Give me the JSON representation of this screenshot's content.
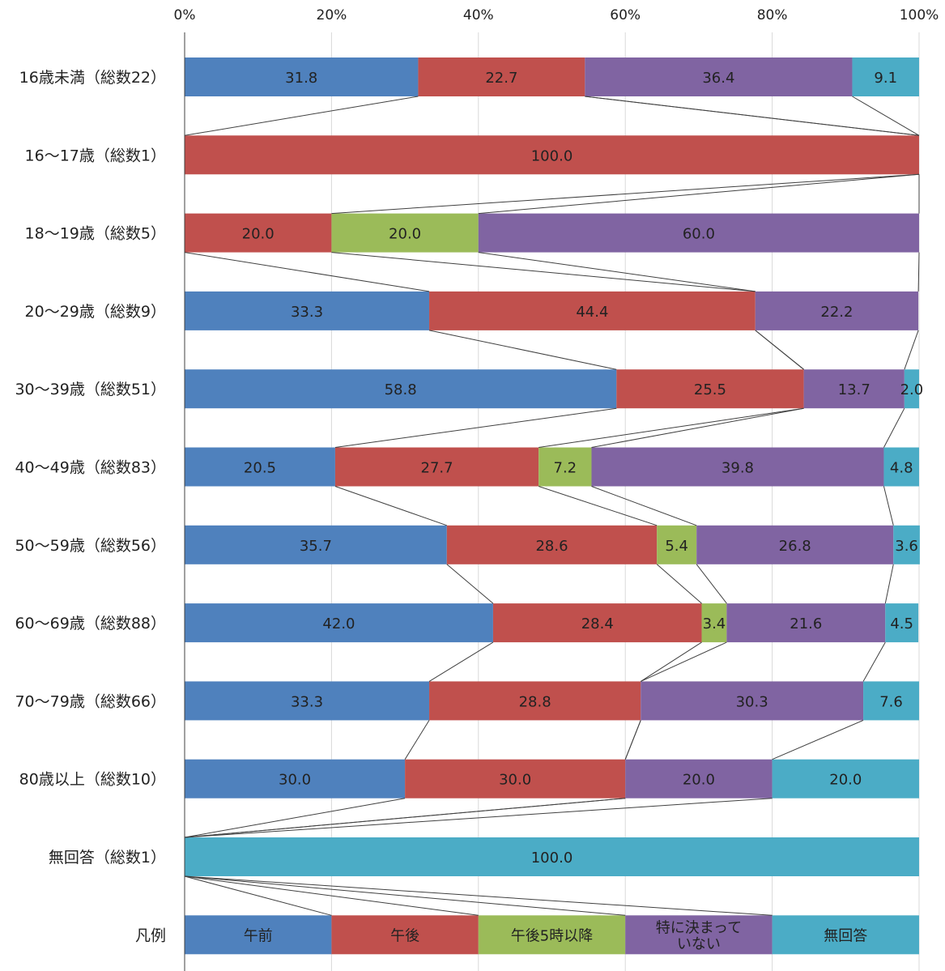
{
  "chart_data": {
    "type": "bar",
    "orientation": "horizontal-stacked-100",
    "xlim": [
      0,
      100
    ],
    "x_ticks": [
      "0%",
      "20%",
      "40%",
      "60%",
      "80%",
      "100%"
    ],
    "grid": true,
    "legend": {
      "label": "凡例",
      "entries": [
        {
          "label": "午前",
          "value": 20
        },
        {
          "label": "午後",
          "value": 20
        },
        {
          "label": "午後5時以降",
          "value": 20
        },
        {
          "label": "特に決まって\nいない",
          "value": 20
        },
        {
          "label": "無回答",
          "value": 20
        }
      ]
    },
    "series": [
      {
        "name": "午前",
        "color": "#4F81BD"
      },
      {
        "name": "午後",
        "color": "#C0504D"
      },
      {
        "name": "午後5時以降",
        "color": "#9BBB59"
      },
      {
        "name": "特に決まって\nいない",
        "color": "#8064A2"
      },
      {
        "name": "無回答",
        "color": "#4BACC6"
      }
    ],
    "categories": [
      "16歳未満（総数22）",
      "16～17歳（総数1）",
      "18～19歳（総数5）",
      "20～29歳（総数9）",
      "30～39歳（総数51）",
      "40～49歳（総数83）",
      "50～59歳（総数56）",
      "60～69歳（総数88）",
      "70～79歳（総数66）",
      "80歳以上（総数10）",
      "無回答（総数1）"
    ],
    "values": [
      [
        31.8,
        22.7,
        0,
        36.4,
        9.1
      ],
      [
        0,
        100.0,
        0,
        0,
        0
      ],
      [
        0,
        20.0,
        20.0,
        60.0,
        0
      ],
      [
        33.3,
        44.4,
        0,
        22.2,
        0
      ],
      [
        58.8,
        25.5,
        0,
        13.7,
        2.0
      ],
      [
        20.5,
        27.7,
        7.2,
        39.8,
        4.8
      ],
      [
        35.7,
        28.6,
        5.4,
        26.8,
        3.6
      ],
      [
        42.0,
        28.4,
        3.4,
        21.6,
        4.5
      ],
      [
        33.3,
        28.8,
        0,
        30.3,
        7.6
      ],
      [
        30.0,
        30.0,
        0,
        20.0,
        20.0
      ],
      [
        0,
        0,
        0,
        0,
        100.0
      ]
    ],
    "value_labels": [
      [
        "31.8",
        "22.7",
        "",
        "36.4",
        "9.1"
      ],
      [
        "",
        "100.0",
        "",
        "",
        ""
      ],
      [
        "",
        "20.0",
        "20.0",
        "60.0",
        ""
      ],
      [
        "33.3",
        "44.4",
        "",
        "22.2",
        ""
      ],
      [
        "58.8",
        "25.5",
        "",
        "13.7",
        "2.0"
      ],
      [
        "20.5",
        "27.7",
        "7.2",
        "39.8",
        "4.8"
      ],
      [
        "35.7",
        "28.6",
        "5.4",
        "26.8",
        "3.6"
      ],
      [
        "42.0",
        "28.4",
        "3.4",
        "21.6",
        "4.5"
      ],
      [
        "33.3",
        "28.8",
        "",
        "30.3",
        "7.6"
      ],
      [
        "30.0",
        "30.0",
        "",
        "20.0",
        "20.0"
      ],
      [
        "",
        "",
        "",
        "",
        "100.0"
      ]
    ],
    "series_lines": true
  }
}
